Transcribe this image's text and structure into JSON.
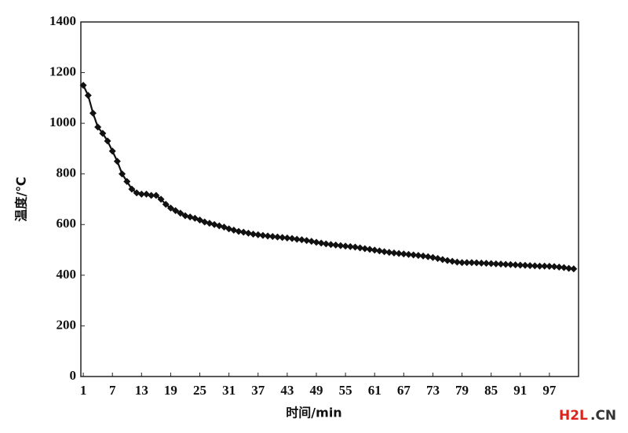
{
  "chart_data": {
    "type": "line",
    "xlabel": "时间/min",
    "ylabel": "温度/℃",
    "watermark": [
      "H2L",
      ".CN"
    ],
    "color": "#111111",
    "x": [
      1,
      2,
      3,
      4,
      5,
      6,
      7,
      8,
      9,
      10,
      11,
      12,
      13,
      14,
      15,
      16,
      17,
      18,
      19,
      20,
      21,
      22,
      23,
      24,
      25,
      26,
      27,
      28,
      29,
      30,
      31,
      32,
      33,
      34,
      35,
      36,
      37,
      38,
      39,
      40,
      41,
      42,
      43,
      44,
      45,
      46,
      47,
      48,
      49,
      50,
      51,
      52,
      53,
      54,
      55,
      56,
      57,
      58,
      59,
      60,
      61,
      62,
      63,
      64,
      65,
      66,
      67,
      68,
      69,
      70,
      71,
      72,
      73,
      74,
      75,
      76,
      77,
      78,
      79,
      80,
      81,
      82,
      83,
      84,
      85,
      86,
      87,
      88,
      89,
      90,
      91,
      92,
      93,
      94,
      95,
      96,
      97,
      98,
      99,
      100,
      101,
      102
    ],
    "values": [
      1150,
      1110,
      1040,
      985,
      960,
      930,
      890,
      850,
      800,
      770,
      740,
      725,
      720,
      720,
      715,
      715,
      700,
      680,
      665,
      655,
      645,
      635,
      630,
      625,
      618,
      610,
      605,
      600,
      595,
      590,
      583,
      578,
      573,
      570,
      566,
      562,
      560,
      557,
      555,
      553,
      551,
      549,
      547,
      545,
      542,
      540,
      537,
      534,
      530,
      527,
      524,
      521,
      519,
      517,
      515,
      513,
      511,
      508,
      505,
      502,
      499,
      496,
      493,
      490,
      488,
      486,
      484,
      482,
      480,
      478,
      476,
      473,
      470,
      466,
      462,
      458,
      455,
      452,
      450,
      450,
      450,
      449,
      448,
      447,
      446,
      445,
      444,
      443,
      442,
      441,
      440,
      439,
      438,
      437,
      436,
      436,
      435,
      434,
      432,
      430,
      427,
      425
    ],
    "xlim": [
      0.5,
      103
    ],
    "xticks": [
      1,
      7,
      13,
      19,
      25,
      31,
      37,
      43,
      49,
      55,
      61,
      67,
      73,
      79,
      85,
      91,
      97
    ],
    "ylim": [
      0,
      1400
    ],
    "yticks": [
      0,
      200,
      400,
      600,
      800,
      1000,
      1200,
      1400
    ]
  }
}
